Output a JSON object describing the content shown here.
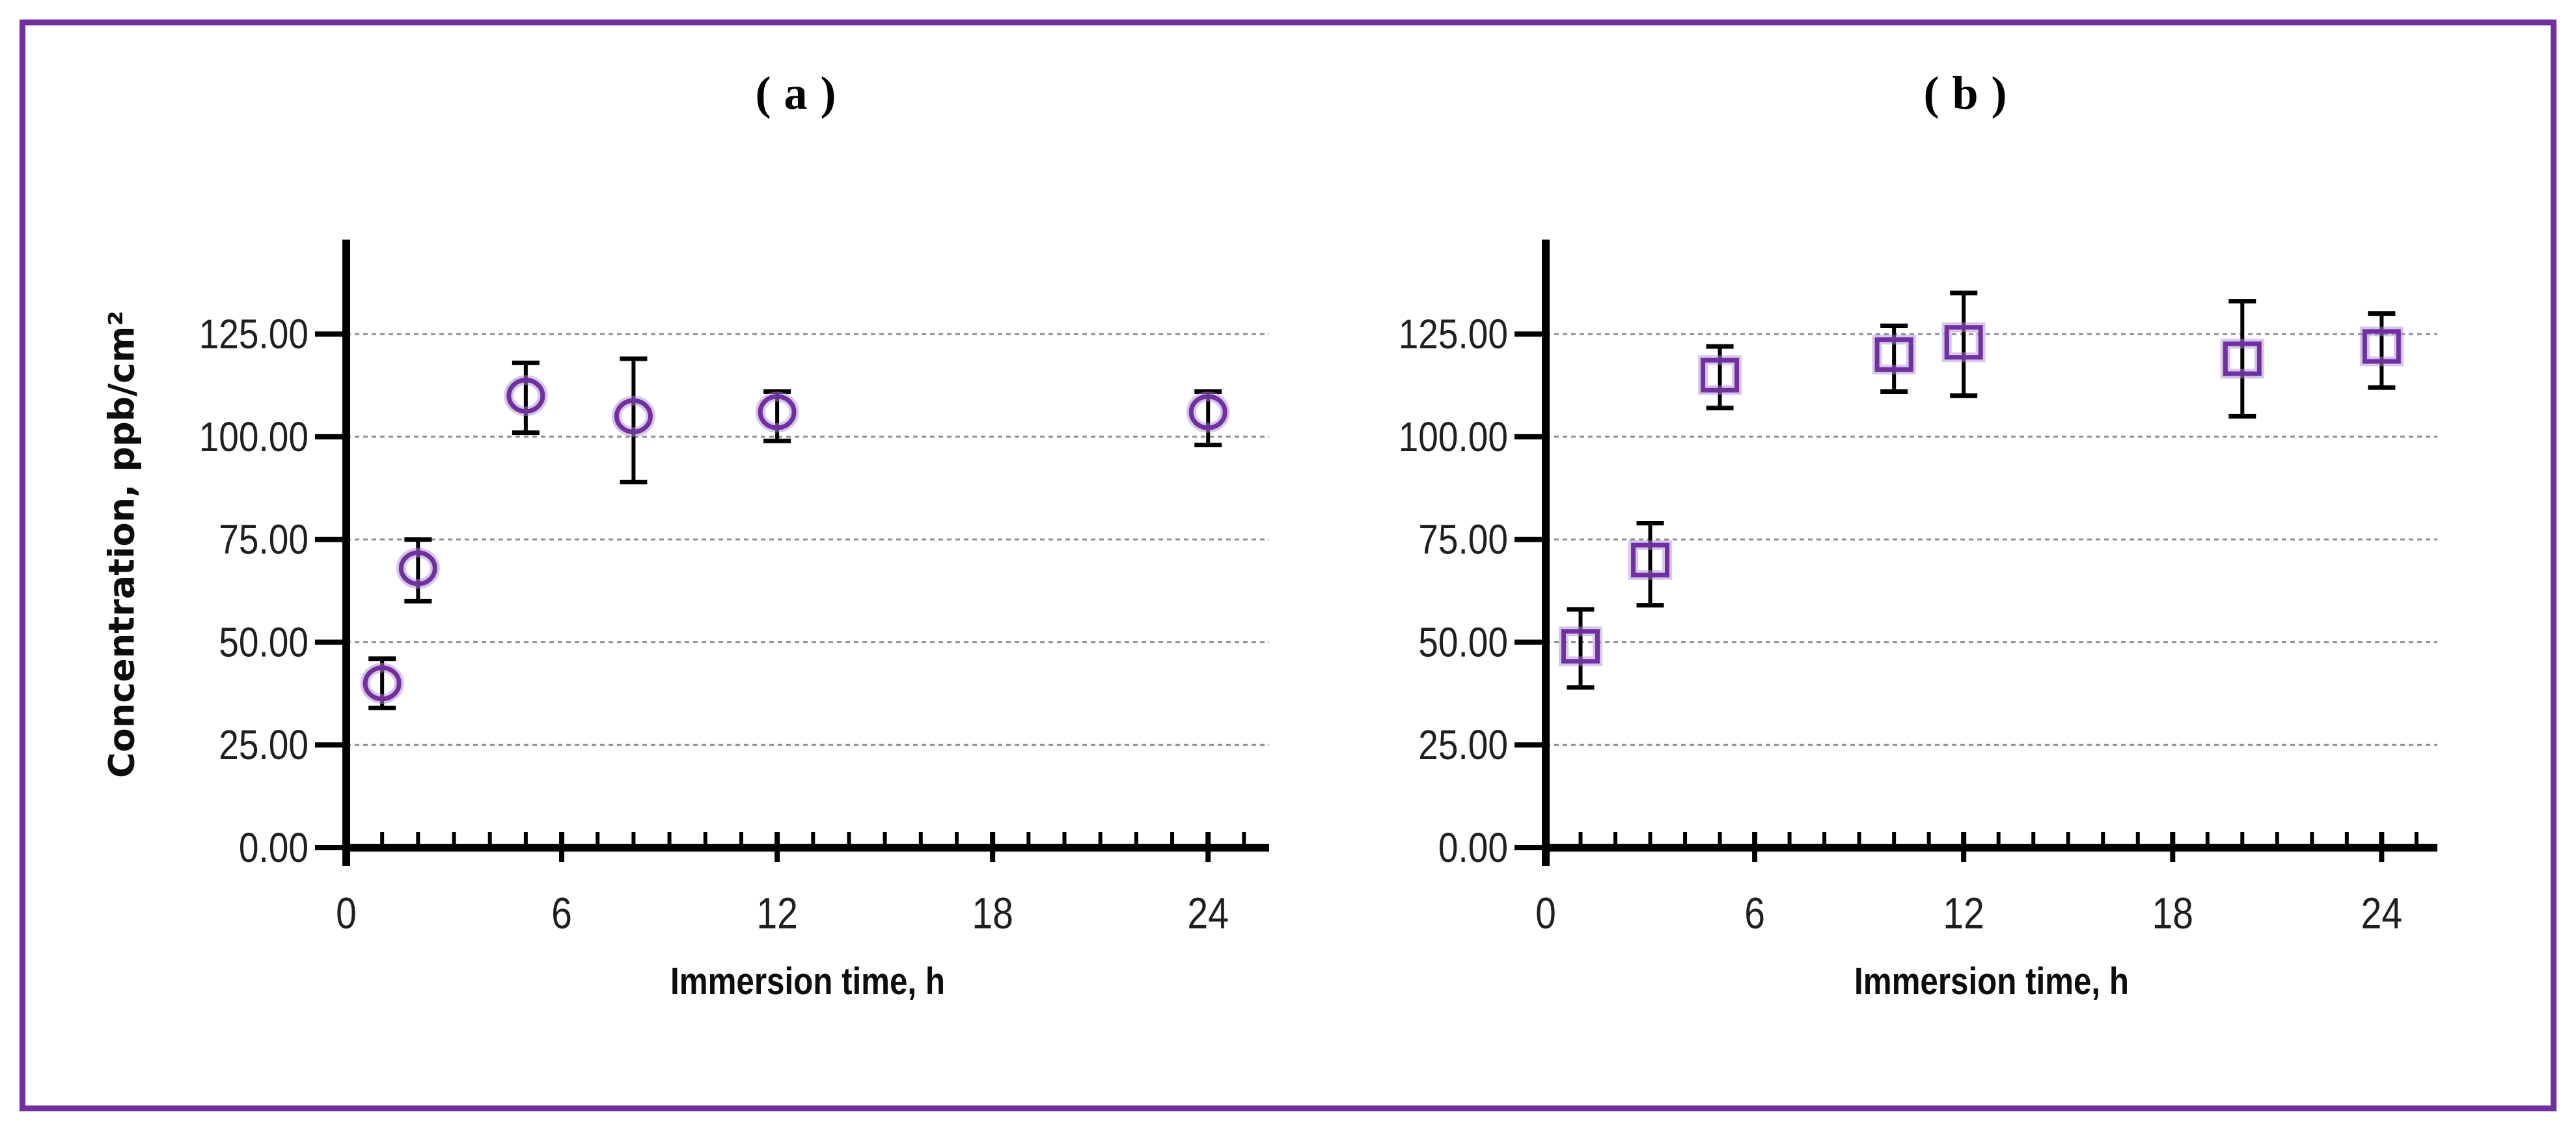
{
  "figure": {
    "border_color": "#7030A0",
    "background_color": "#FFFFFF"
  },
  "chart_data": [
    {
      "type": "scatter",
      "panel": "a",
      "title": "( a )",
      "xlabel": "Immersion time, h",
      "ylabel": "Concentration, ppb/cm²",
      "marker": "circle",
      "marker_color": "#7030A0",
      "marker_halo_color": "rgba(176,141,211,0.5)",
      "error_bar_color": "#000000",
      "gridline_color": "#8f8f8f",
      "grid_style": "dashed-horizontal",
      "legend": "none",
      "x": [
        1,
        2,
        5,
        8,
        12,
        24
      ],
      "y": [
        40,
        68,
        110,
        105,
        106,
        106
      ],
      "err_up": [
        6,
        7,
        8,
        14,
        5,
        5
      ],
      "err_down": [
        6,
        8,
        9,
        16,
        7,
        8
      ],
      "xlim": [
        0,
        25.7
      ],
      "ylim": [
        0,
        148
      ],
      "x_ticks": [
        0,
        6,
        12,
        18,
        24
      ],
      "x_tick_labels": [
        "0",
        "6",
        "12",
        "18",
        "24"
      ],
      "x_minor_step": 1,
      "y_ticks": [
        0,
        25,
        50,
        75,
        100,
        125
      ],
      "y_tick_labels": [
        "0.00",
        "25.00",
        "50.00",
        "75.00",
        "100.00",
        "125.00"
      ],
      "gridline_values": [
        25,
        50,
        75,
        100,
        125
      ]
    },
    {
      "type": "scatter",
      "panel": "b",
      "title": "( b )",
      "xlabel": "Immersion time, h",
      "ylabel": "",
      "marker": "square",
      "marker_color": "#7030A0",
      "marker_halo_color": "rgba(176,141,211,0.5)",
      "error_bar_color": "#000000",
      "gridline_color": "#8f8f8f",
      "grid_style": "dashed-horizontal",
      "legend": "none",
      "x": [
        1,
        3,
        5,
        10,
        12,
        20,
        24
      ],
      "y": [
        49,
        70,
        115,
        120,
        123,
        119,
        122
      ],
      "err_up": [
        9,
        9,
        7,
        7,
        12,
        14,
        8
      ],
      "err_down": [
        10,
        11,
        8,
        9,
        13,
        14,
        10
      ],
      "xlim": [
        0,
        25.6
      ],
      "ylim": [
        0,
        148
      ],
      "x_ticks": [
        0,
        6,
        12,
        18,
        24
      ],
      "x_tick_labels": [
        "0",
        "6",
        "12",
        "18",
        "24"
      ],
      "x_minor_step": 1,
      "y_ticks": [
        0,
        25,
        50,
        75,
        100,
        125
      ],
      "y_tick_labels": [
        "0.00",
        "25.00",
        "50.00",
        "75.00",
        "100.00",
        "125.00"
      ],
      "gridline_values": [
        25,
        50,
        75,
        100,
        125
      ]
    }
  ]
}
